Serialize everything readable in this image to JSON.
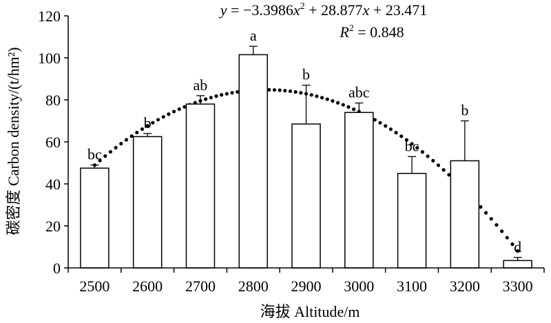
{
  "chart_data": {
    "type": "bar",
    "xlabel": "海拔  Altitude/m",
    "ylabel": "碳密度  Carbon density/(t/hm²)",
    "categories": [
      "2500",
      "2600",
      "2700",
      "2800",
      "2900",
      "3000",
      "3100",
      "3200",
      "3300"
    ],
    "values": [
      47.5,
      62.5,
      78.0,
      101.5,
      68.5,
      74.0,
      45.0,
      51.0,
      3.5
    ],
    "errors": [
      1.5,
      1.5,
      4.0,
      4.0,
      18.5,
      4.5,
      8.0,
      19.0,
      1.5
    ],
    "letters": [
      "bc",
      "b",
      "ab",
      "a",
      "b",
      "abc",
      "bc",
      "b",
      "d"
    ],
    "ylim": [
      0,
      120
    ],
    "yticks": [
      0,
      20,
      40,
      60,
      80,
      100,
      120
    ],
    "fit": {
      "type": "quadratic",
      "coefficients": {
        "a": -3.3986,
        "b": 28.877,
        "c": 23.471
      },
      "x_variable": "category index (1 = 2500)",
      "equation_text": {
        "y": "y",
        "eq1": " = −3.3986",
        "x1": "x",
        "exp": "2",
        "eq2": " + 28.877",
        "x2": "x",
        "eq3": " + 23.471"
      },
      "r2_text": {
        "R": "R",
        "exp": "2",
        "rest": " = 0.848"
      }
    }
  }
}
